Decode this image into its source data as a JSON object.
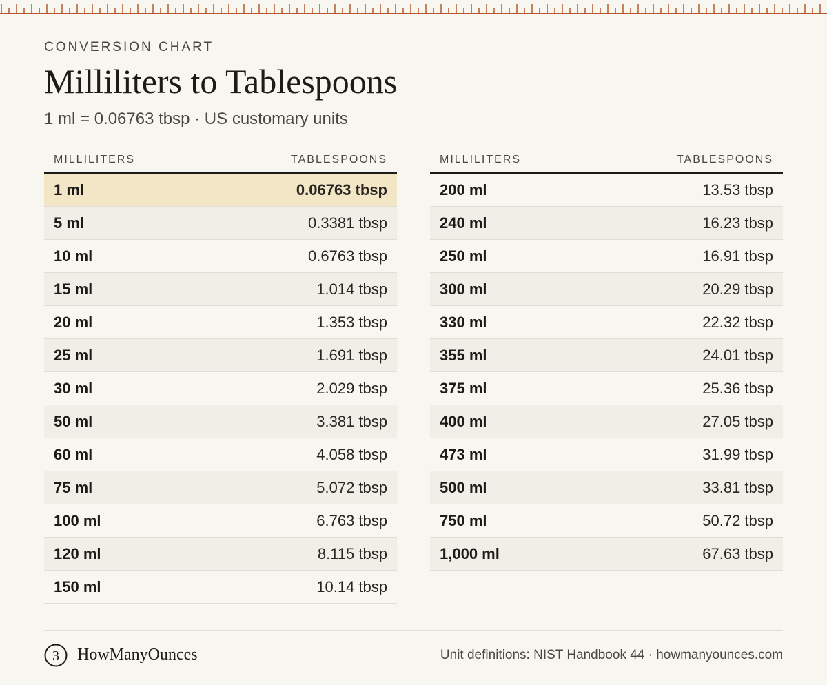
{
  "header": {
    "eyebrow": "CONVERSION CHART",
    "title": "Milliliters to Tablespoons",
    "subtitle": "1 ml = 0.06763 tbsp · US customary units"
  },
  "table": {
    "col_ml": "MILLILITERS",
    "col_tbsp": "TABLESPOONS",
    "left_rows": [
      {
        "ml": "1 ml",
        "tbsp": "0.06763 tbsp"
      },
      {
        "ml": "5 ml",
        "tbsp": "0.3381 tbsp"
      },
      {
        "ml": "10 ml",
        "tbsp": "0.6763 tbsp"
      },
      {
        "ml": "15 ml",
        "tbsp": "1.014 tbsp"
      },
      {
        "ml": "20 ml",
        "tbsp": "1.353 tbsp"
      },
      {
        "ml": "25 ml",
        "tbsp": "1.691 tbsp"
      },
      {
        "ml": "30 ml",
        "tbsp": "2.029 tbsp"
      },
      {
        "ml": "50 ml",
        "tbsp": "3.381 tbsp"
      },
      {
        "ml": "60 ml",
        "tbsp": "4.058 tbsp"
      },
      {
        "ml": "75 ml",
        "tbsp": "5.072 tbsp"
      },
      {
        "ml": "100 ml",
        "tbsp": "6.763 tbsp"
      },
      {
        "ml": "120 ml",
        "tbsp": "8.115 tbsp"
      },
      {
        "ml": "150 ml",
        "tbsp": "10.14 tbsp"
      }
    ],
    "right_rows": [
      {
        "ml": "200 ml",
        "tbsp": "13.53 tbsp"
      },
      {
        "ml": "240 ml",
        "tbsp": "16.23 tbsp"
      },
      {
        "ml": "250 ml",
        "tbsp": "16.91 tbsp"
      },
      {
        "ml": "300 ml",
        "tbsp": "20.29 tbsp"
      },
      {
        "ml": "330 ml",
        "tbsp": "22.32 tbsp"
      },
      {
        "ml": "355 ml",
        "tbsp": "24.01 tbsp"
      },
      {
        "ml": "375 ml",
        "tbsp": "25.36 tbsp"
      },
      {
        "ml": "400 ml",
        "tbsp": "27.05 tbsp"
      },
      {
        "ml": "473 ml",
        "tbsp": "31.99 tbsp"
      },
      {
        "ml": "500 ml",
        "tbsp": "33.81 tbsp"
      },
      {
        "ml": "750 ml",
        "tbsp": "50.72 tbsp"
      },
      {
        "ml": "1,000 ml",
        "tbsp": "67.63 tbsp"
      }
    ]
  },
  "footer": {
    "logo_glyph": "3",
    "brand": "HowManyOunces",
    "source": "Unit definitions: NIST Handbook 44 · howmanyounces.com"
  },
  "colors": {
    "background": "#f8f6f1",
    "ruler": "#b5582a",
    "highlight_row": "#f3e6c6",
    "alt_row": "#f1eee7"
  }
}
